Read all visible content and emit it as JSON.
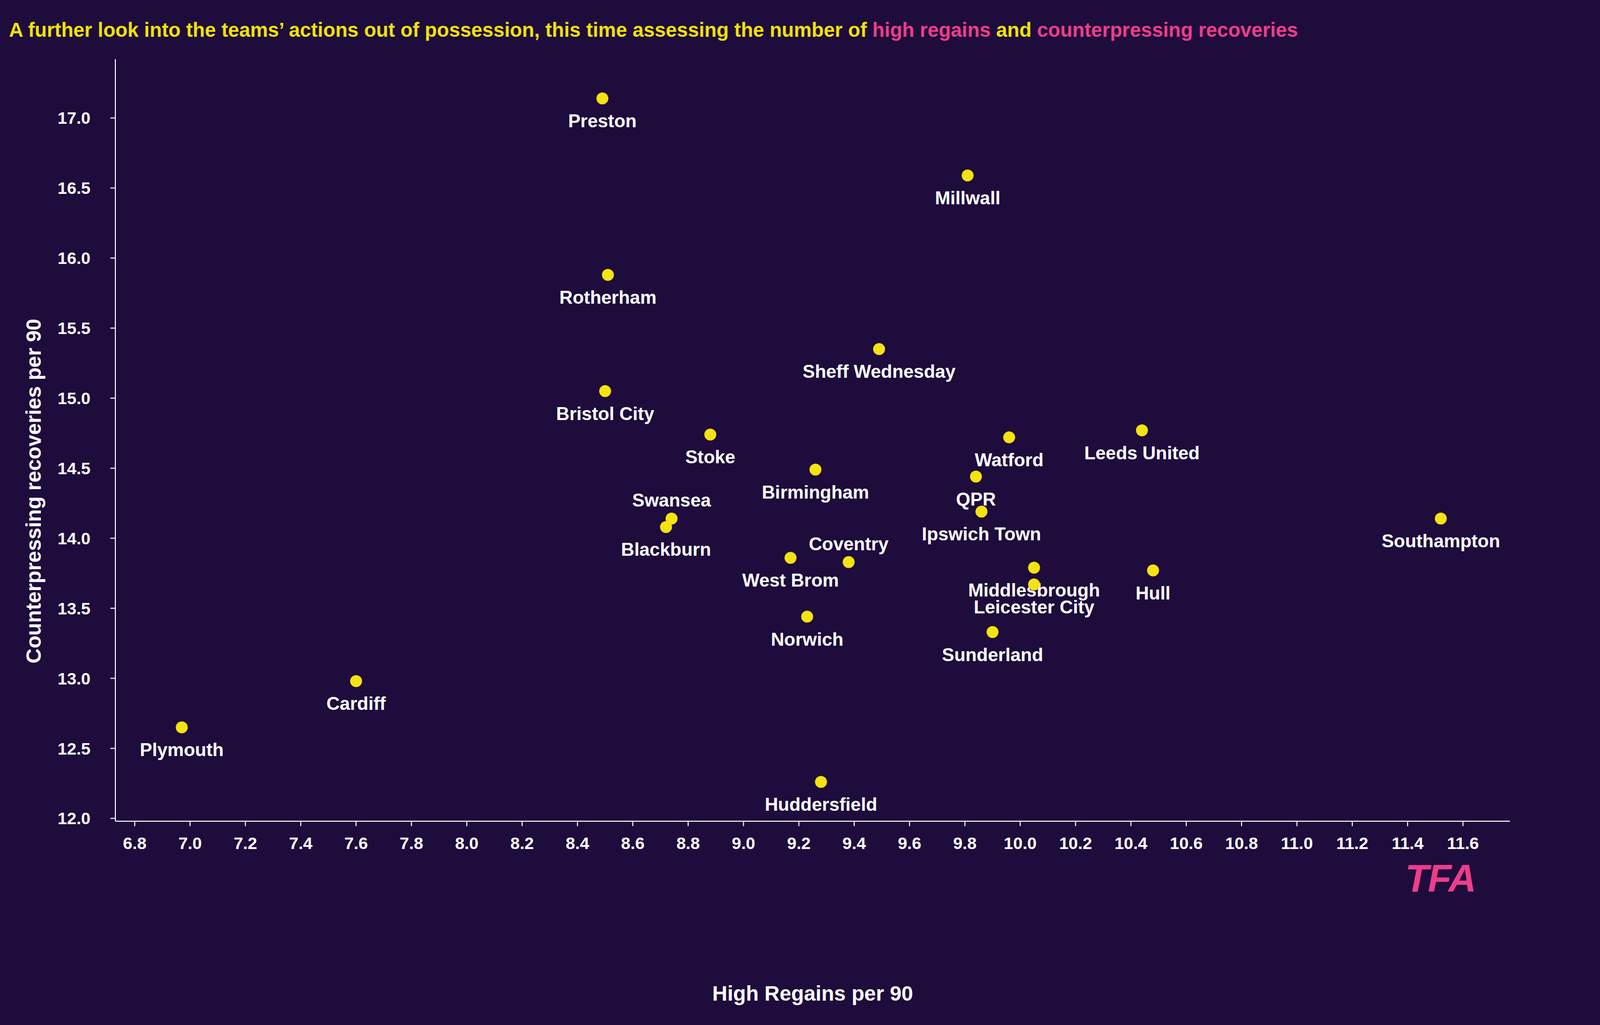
{
  "chart_data": {
    "type": "scatter",
    "title": "A further look into the teams’ actions out of possession, this time assessing the number of high regains and counterpressing recoveries",
    "title_highlights": [
      "high regains",
      "counterpressing recoveries"
    ],
    "x_label": "High Regains per 90",
    "y_label": "Counterpressing recoveries per 90",
    "annotations": [
      "TFA"
    ],
    "point_labels": [
      "Preston",
      "Millwall",
      "Rotherham",
      "Sheff Wednesday",
      "Bristol City",
      "Stoke",
      "Birmingham",
      "Watford",
      "Leeds United",
      "QPR",
      "Ipswich Town",
      "Swansea",
      "Blackburn",
      "Southampton",
      "West Brom",
      "Coventry",
      "Middlesbrough",
      "Leicester City",
      "Hull",
      "Norwich",
      "Sunderland",
      "Cardiff",
      "Plymouth",
      "Huddersfield"
    ],
    "x": [
      8.49,
      9.81,
      8.51,
      9.49,
      8.5,
      8.88,
      9.26,
      9.96,
      10.44,
      9.84,
      9.86,
      8.74,
      8.72,
      11.52,
      9.17,
      9.38,
      10.05,
      10.05,
      10.48,
      9.23,
      9.9,
      7.6,
      6.97,
      9.28
    ],
    "values": [
      17.14,
      16.59,
      15.88,
      15.35,
      15.05,
      14.74,
      14.49,
      14.72,
      14.77,
      14.44,
      14.19,
      14.14,
      14.08,
      14.14,
      13.86,
      13.83,
      13.79,
      13.67,
      13.77,
      13.44,
      13.33,
      12.98,
      12.65,
      12.26
    ],
    "color": "#f5e211",
    "marker": "circle",
    "grid": false,
    "xlim": [
      6.73,
      11.77
    ],
    "ylim": [
      11.98,
      17.42
    ],
    "xticks": [
      6.8,
      {
        "value": 7,
        "label": "7.0"
      },
      7.2,
      7.4,
      7.6,
      7.8,
      {
        "value": 8,
        "label": "8.0"
      },
      8.2,
      8.4,
      8.6,
      8.8,
      {
        "value": 9,
        "label": "9.0"
      },
      9.2,
      9.4,
      9.6,
      9.8,
      {
        "value": 10,
        "label": "10.0"
      },
      10.2,
      10.4,
      10.6,
      10.8,
      {
        "value": 11,
        "label": "11.0"
      },
      11.2,
      11.4,
      11.6
    ],
    "yticks": [
      {
        "value": 12,
        "label": "12.0"
      },
      12.5,
      {
        "value": 13,
        "label": "13.0"
      },
      13.5,
      {
        "value": 14,
        "label": "14.0"
      },
      14.5,
      {
        "value": 15,
        "label": "15.0"
      },
      15.5,
      {
        "value": 16,
        "label": "16.0"
      },
      16.5,
      {
        "value": 17,
        "label": "17.0"
      }
    ]
  }
}
